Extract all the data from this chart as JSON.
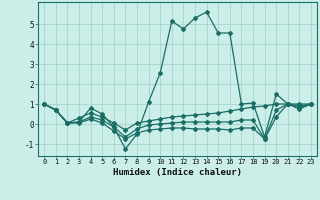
{
  "title": "",
  "xlabel": "Humidex (Indice chaleur)",
  "ylabel": "",
  "background_color": "#cceee8",
  "grid_color": "#aad8d2",
  "line_color": "#1a6e65",
  "xlim": [
    -0.5,
    23.5
  ],
  "ylim": [
    -1.6,
    6.1
  ],
  "xticks": [
    0,
    1,
    2,
    3,
    4,
    5,
    6,
    7,
    8,
    9,
    10,
    11,
    12,
    13,
    14,
    15,
    16,
    17,
    18,
    19,
    20,
    21,
    22,
    23
  ],
  "yticks": [
    -1,
    0,
    1,
    2,
    3,
    4,
    5
  ],
  "lines": [
    {
      "x": [
        0,
        1,
        2,
        3,
        4,
        5,
        6,
        7,
        8,
        9,
        10,
        11,
        12,
        13,
        14,
        15,
        16,
        17,
        18,
        19,
        20,
        21,
        22,
        23
      ],
      "y": [
        1.0,
        0.7,
        0.05,
        0.1,
        0.8,
        0.5,
        -0.15,
        -1.25,
        -0.5,
        1.1,
        2.55,
        5.15,
        4.75,
        5.3,
        5.6,
        4.55,
        4.55,
        1.0,
        1.05,
        -0.65,
        1.5,
        1.0,
        0.9,
        1.0
      ]
    },
    {
      "x": [
        0,
        1,
        2,
        3,
        4,
        5,
        6,
        7,
        8,
        9,
        10,
        11,
        12,
        13,
        14,
        15,
        16,
        17,
        18,
        19,
        20,
        21,
        22,
        23
      ],
      "y": [
        1.0,
        0.7,
        0.05,
        0.3,
        0.55,
        0.35,
        0.05,
        -0.3,
        0.05,
        0.15,
        0.25,
        0.35,
        0.4,
        0.45,
        0.5,
        0.55,
        0.65,
        0.75,
        0.85,
        0.9,
        1.0,
        1.0,
        1.0,
        1.0
      ]
    },
    {
      "x": [
        0,
        1,
        2,
        3,
        4,
        5,
        6,
        7,
        8,
        9,
        10,
        11,
        12,
        13,
        14,
        15,
        16,
        17,
        18,
        19,
        20,
        21,
        22,
        23
      ],
      "y": [
        1.0,
        0.7,
        0.05,
        0.1,
        0.35,
        0.2,
        -0.15,
        -0.65,
        -0.25,
        -0.05,
        0.0,
        0.05,
        0.1,
        0.1,
        0.1,
        0.1,
        0.1,
        0.2,
        0.2,
        -0.75,
        0.7,
        1.0,
        0.8,
        1.0
      ]
    },
    {
      "x": [
        0,
        1,
        2,
        3,
        4,
        5,
        6,
        7,
        8,
        9,
        10,
        11,
        12,
        13,
        14,
        15,
        16,
        17,
        18,
        19,
        20,
        21,
        22,
        23
      ],
      "y": [
        1.0,
        0.7,
        0.05,
        0.05,
        0.25,
        0.05,
        -0.35,
        -0.75,
        -0.45,
        -0.3,
        -0.25,
        -0.2,
        -0.2,
        -0.25,
        -0.25,
        -0.25,
        -0.3,
        -0.2,
        -0.2,
        -0.75,
        0.35,
        1.0,
        0.75,
        1.0
      ]
    }
  ]
}
